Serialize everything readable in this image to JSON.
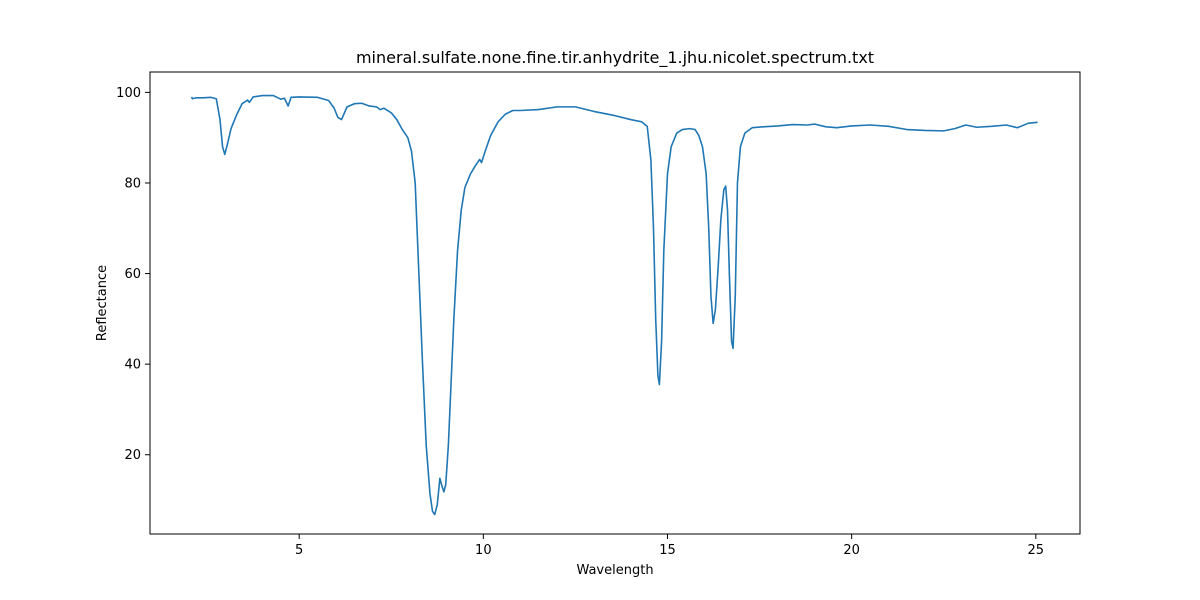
{
  "chart_data": {
    "type": "line",
    "title": "mineral.sulfate.none.fine.tir.anhydrite_1.jhu.nicolet.spectrum.txt",
    "xlabel": "Wavelength",
    "ylabel": "Reflectance",
    "xlim": [
      0.95,
      26.2
    ],
    "ylim": [
      2.5,
      104.5
    ],
    "x_ticks": [
      5,
      10,
      15,
      20,
      25
    ],
    "y_ticks": [
      20,
      40,
      60,
      80,
      100
    ],
    "grid": false,
    "legend": "none",
    "series": [
      {
        "color": "#1f77b4",
        "points": [
          [
            2.08,
            99.0
          ],
          [
            2.1,
            98.6
          ],
          [
            2.2,
            98.8
          ],
          [
            2.4,
            98.8
          ],
          [
            2.6,
            98.9
          ],
          [
            2.75,
            98.6
          ],
          [
            2.85,
            94.0
          ],
          [
            2.92,
            88.0
          ],
          [
            2.98,
            86.3
          ],
          [
            3.05,
            88.5
          ],
          [
            3.15,
            92.0
          ],
          [
            3.3,
            95.0
          ],
          [
            3.45,
            97.5
          ],
          [
            3.6,
            98.3
          ],
          [
            3.65,
            97.8
          ],
          [
            3.75,
            99.0
          ],
          [
            4.0,
            99.3
          ],
          [
            4.3,
            99.3
          ],
          [
            4.5,
            98.5
          ],
          [
            4.6,
            98.7
          ],
          [
            4.7,
            97.0
          ],
          [
            4.78,
            98.9
          ],
          [
            5.0,
            99.0
          ],
          [
            5.5,
            98.9
          ],
          [
            5.8,
            98.2
          ],
          [
            5.95,
            96.5
          ],
          [
            6.05,
            94.5
          ],
          [
            6.15,
            94.0
          ],
          [
            6.3,
            96.8
          ],
          [
            6.5,
            97.5
          ],
          [
            6.7,
            97.6
          ],
          [
            6.9,
            97.0
          ],
          [
            7.1,
            96.8
          ],
          [
            7.2,
            96.2
          ],
          [
            7.3,
            96.5
          ],
          [
            7.5,
            95.5
          ],
          [
            7.65,
            94.0
          ],
          [
            7.8,
            91.8
          ],
          [
            7.95,
            90.0
          ],
          [
            8.05,
            87.0
          ],
          [
            8.15,
            80.0
          ],
          [
            8.25,
            60.0
          ],
          [
            8.35,
            40.0
          ],
          [
            8.45,
            22.0
          ],
          [
            8.55,
            11.5
          ],
          [
            8.62,
            7.5
          ],
          [
            8.68,
            6.8
          ],
          [
            8.75,
            9.0
          ],
          [
            8.82,
            14.8
          ],
          [
            8.88,
            13.0
          ],
          [
            8.93,
            11.8
          ],
          [
            8.98,
            13.5
          ],
          [
            9.05,
            22.0
          ],
          [
            9.12,
            35.0
          ],
          [
            9.2,
            50.0
          ],
          [
            9.3,
            65.0
          ],
          [
            9.4,
            74.0
          ],
          [
            9.5,
            79.0
          ],
          [
            9.65,
            82.0
          ],
          [
            9.8,
            84.0
          ],
          [
            9.9,
            85.2
          ],
          [
            9.95,
            84.5
          ],
          [
            10.05,
            87.0
          ],
          [
            10.2,
            90.5
          ],
          [
            10.4,
            93.5
          ],
          [
            10.6,
            95.2
          ],
          [
            10.8,
            96.0
          ],
          [
            11.0,
            96.0
          ],
          [
            11.5,
            96.2
          ],
          [
            12.0,
            96.8
          ],
          [
            12.5,
            96.8
          ],
          [
            13.0,
            95.8
          ],
          [
            13.5,
            95.0
          ],
          [
            14.0,
            94.0
          ],
          [
            14.3,
            93.5
          ],
          [
            14.45,
            92.5
          ],
          [
            14.55,
            85.0
          ],
          [
            14.62,
            70.0
          ],
          [
            14.68,
            50.0
          ],
          [
            14.74,
            37.5
          ],
          [
            14.78,
            35.5
          ],
          [
            14.84,
            45.0
          ],
          [
            14.9,
            65.0
          ],
          [
            15.0,
            82.0
          ],
          [
            15.1,
            88.0
          ],
          [
            15.25,
            91.0
          ],
          [
            15.4,
            91.8
          ],
          [
            15.6,
            92.0
          ],
          [
            15.75,
            91.8
          ],
          [
            15.85,
            90.5
          ],
          [
            15.95,
            88.0
          ],
          [
            16.05,
            82.0
          ],
          [
            16.12,
            70.0
          ],
          [
            16.18,
            55.0
          ],
          [
            16.24,
            49.0
          ],
          [
            16.3,
            52.0
          ],
          [
            16.38,
            62.0
          ],
          [
            16.45,
            72.0
          ],
          [
            16.53,
            78.5
          ],
          [
            16.58,
            79.3
          ],
          [
            16.63,
            74.0
          ],
          [
            16.68,
            60.0
          ],
          [
            16.74,
            45.0
          ],
          [
            16.78,
            43.5
          ],
          [
            16.84,
            55.0
          ],
          [
            16.9,
            80.0
          ],
          [
            16.98,
            88.0
          ],
          [
            17.1,
            91.0
          ],
          [
            17.3,
            92.2
          ],
          [
            17.6,
            92.4
          ],
          [
            18.0,
            92.6
          ],
          [
            18.4,
            92.9
          ],
          [
            18.8,
            92.8
          ],
          [
            19.0,
            93.0
          ],
          [
            19.3,
            92.4
          ],
          [
            19.6,
            92.2
          ],
          [
            20.0,
            92.6
          ],
          [
            20.5,
            92.8
          ],
          [
            21.0,
            92.5
          ],
          [
            21.5,
            91.8
          ],
          [
            22.0,
            91.6
          ],
          [
            22.5,
            91.5
          ],
          [
            22.8,
            92.0
          ],
          [
            23.1,
            92.8
          ],
          [
            23.4,
            92.3
          ],
          [
            23.8,
            92.5
          ],
          [
            24.2,
            92.8
          ],
          [
            24.5,
            92.2
          ],
          [
            24.8,
            93.2
          ],
          [
            25.05,
            93.4
          ]
        ]
      }
    ]
  }
}
